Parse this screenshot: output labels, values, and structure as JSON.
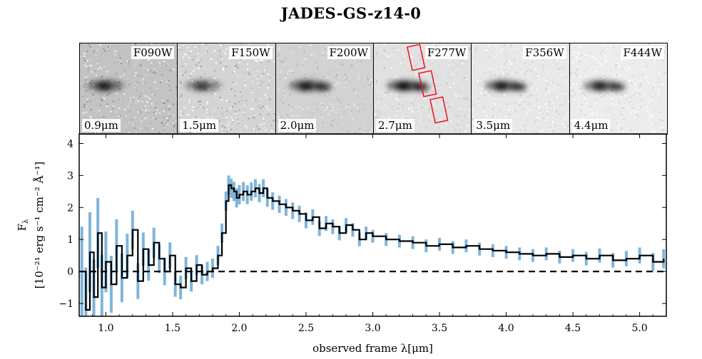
{
  "title": "JADES-GS-z14-0",
  "stamps": [
    {
      "filter": "F090W",
      "wavelength": "0.9μm"
    },
    {
      "filter": "F150W",
      "wavelength": "1.5μm"
    },
    {
      "filter": "F200W",
      "wavelength": "2.0μm"
    },
    {
      "filter": "F277W",
      "wavelength": "2.7μm",
      "shows_slit": true
    },
    {
      "filter": "F356W",
      "wavelength": "3.5μm"
    },
    {
      "filter": "F444W",
      "wavelength": "4.4μm"
    }
  ],
  "colors": {
    "spectrum": "#000000",
    "error_band": "#7fb5da",
    "slit": "#e8141c",
    "zero_line": "#000000"
  },
  "chart_data": {
    "type": "line",
    "title": "JADES-GS-z14-0",
    "xlabel": "observed frame λ[μm]",
    "ylabel_line1": "F",
    "ylabel_sub": "λ",
    "ylabel_line2": "[10⁻²¹ erg s⁻¹ cm⁻² Å⁻¹]",
    "xlim": [
      0.8,
      5.2
    ],
    "ylim": [
      -1.4,
      4.3
    ],
    "xticks": [
      1.0,
      1.5,
      2.0,
      2.5,
      3.0,
      3.5,
      4.0,
      4.5,
      5.0
    ],
    "xtick_labels": [
      "1.0",
      "1.5",
      "2.0",
      "2.5",
      "3.0",
      "3.5",
      "4.0",
      "4.5",
      "5.0"
    ],
    "yticks": [
      -1,
      0,
      1,
      2,
      3,
      4
    ],
    "ytick_labels": [
      "−1",
      "0",
      "1",
      "2",
      "3",
      "4"
    ],
    "zero_line": {
      "y": 0,
      "style": "dashed"
    },
    "series": [
      {
        "kind": "flux",
        "x": [
          0.82,
          0.85,
          0.88,
          0.91,
          0.94,
          0.97,
          1.0,
          1.04,
          1.08,
          1.12,
          1.16,
          1.2,
          1.24,
          1.28,
          1.32,
          1.36,
          1.4,
          1.44,
          1.48,
          1.52,
          1.56,
          1.6,
          1.64,
          1.68,
          1.72,
          1.76,
          1.8,
          1.84,
          1.87,
          1.9,
          1.92,
          1.94,
          1.96,
          1.98,
          2.0,
          2.03,
          2.06,
          2.09,
          2.12,
          2.15,
          2.18,
          2.21,
          2.25,
          2.3,
          2.35,
          2.4,
          2.45,
          2.5,
          2.55,
          2.6,
          2.65,
          2.7,
          2.75,
          2.8,
          2.85,
          2.9,
          2.95,
          3.0,
          3.1,
          3.2,
          3.3,
          3.4,
          3.5,
          3.6,
          3.7,
          3.8,
          3.9,
          4.0,
          4.1,
          4.2,
          4.3,
          4.4,
          4.5,
          4.6,
          4.7,
          4.8,
          4.9,
          5.0,
          5.1,
          5.18
        ],
        "y": [
          0.0,
          -1.2,
          0.6,
          -0.8,
          1.2,
          -0.5,
          0.3,
          -0.4,
          0.8,
          -0.2,
          0.5,
          1.3,
          -0.3,
          0.7,
          0.2,
          0.9,
          0.4,
          0.0,
          0.5,
          -0.4,
          -0.5,
          0.1,
          -0.3,
          0.2,
          -0.1,
          0.0,
          0.1,
          0.5,
          1.2,
          2.2,
          2.7,
          2.6,
          2.5,
          2.3,
          2.4,
          2.5,
          2.4,
          2.5,
          2.6,
          2.45,
          2.6,
          2.3,
          2.2,
          2.1,
          2.0,
          1.9,
          1.8,
          1.6,
          1.7,
          1.35,
          1.5,
          1.4,
          1.2,
          1.45,
          1.3,
          1.0,
          1.2,
          1.1,
          1.0,
          0.95,
          0.9,
          0.8,
          0.85,
          0.75,
          0.8,
          0.7,
          0.65,
          0.6,
          0.55,
          0.5,
          0.55,
          0.45,
          0.5,
          0.4,
          0.5,
          0.35,
          0.4,
          0.5,
          0.3,
          0.4
        ]
      },
      {
        "kind": "error",
        "x": [
          0.82,
          0.9,
          1.0,
          1.1,
          1.2,
          1.3,
          1.4,
          1.5,
          1.6,
          1.7,
          1.8,
          1.9,
          2.0,
          2.2,
          2.5,
          3.0,
          3.5,
          4.0,
          4.5,
          5.0,
          5.18
        ],
        "sigma": [
          1.4,
          1.2,
          0.95,
          0.8,
          0.6,
          0.5,
          0.45,
          0.4,
          0.35,
          0.3,
          0.3,
          0.3,
          0.3,
          0.28,
          0.25,
          0.2,
          0.2,
          0.2,
          0.2,
          0.25,
          0.3
        ]
      }
    ]
  }
}
